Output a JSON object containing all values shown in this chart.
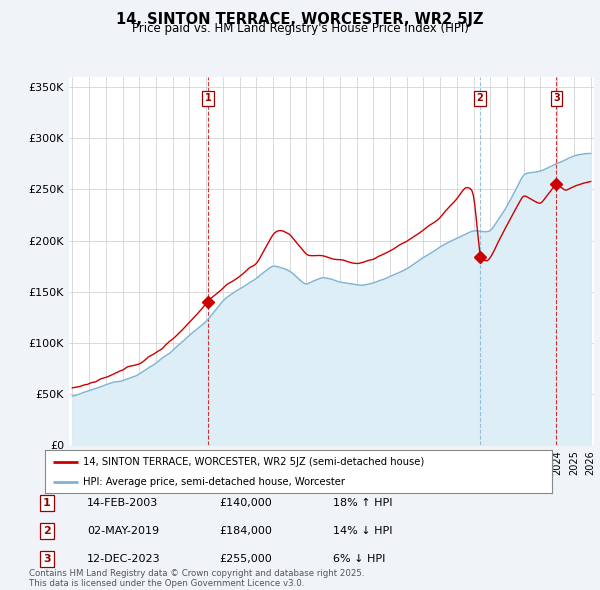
{
  "title": "14, SINTON TERRACE, WORCESTER, WR2 5JZ",
  "subtitle": "Price paid vs. HM Land Registry's House Price Index (HPI)",
  "ylabel_ticks": [
    "£0",
    "£50K",
    "£100K",
    "£150K",
    "£200K",
    "£250K",
    "£300K",
    "£350K"
  ],
  "ytick_values": [
    0,
    50000,
    100000,
    150000,
    200000,
    250000,
    300000,
    350000
  ],
  "ylim": [
    0,
    360000
  ],
  "xlim_start": 1994.8,
  "xlim_end": 2026.2,
  "red_color": "#cc0000",
  "blue_color": "#7fb3d3",
  "blue_fill": "#ddeef7",
  "dashed_red": "#cc0000",
  "dashed_blue": "#7fb3d3",
  "legend_label_red": "14, SINTON TERRACE, WORCESTER, WR2 5JZ (semi-detached house)",
  "legend_label_blue": "HPI: Average price, semi-detached house, Worcester",
  "transactions": [
    {
      "num": 1,
      "date": "14-FEB-2003",
      "price": 140000,
      "change": "18% ↑ HPI",
      "year": 2003.12,
      "vline_color": "#cc0000"
    },
    {
      "num": 2,
      "date": "02-MAY-2019",
      "price": 184000,
      "change": "14% ↓ HPI",
      "year": 2019.37,
      "vline_color": "#7fb3d3"
    },
    {
      "num": 3,
      "date": "12-DEC-2023",
      "price": 255000,
      "change": "6% ↓ HPI",
      "year": 2023.95,
      "vline_color": "#cc0000"
    }
  ],
  "footnote": "Contains HM Land Registry data © Crown copyright and database right 2025.\nThis data is licensed under the Open Government Licence v3.0.",
  "background_color": "#f0f4f8",
  "plot_bg_color": "#ffffff"
}
